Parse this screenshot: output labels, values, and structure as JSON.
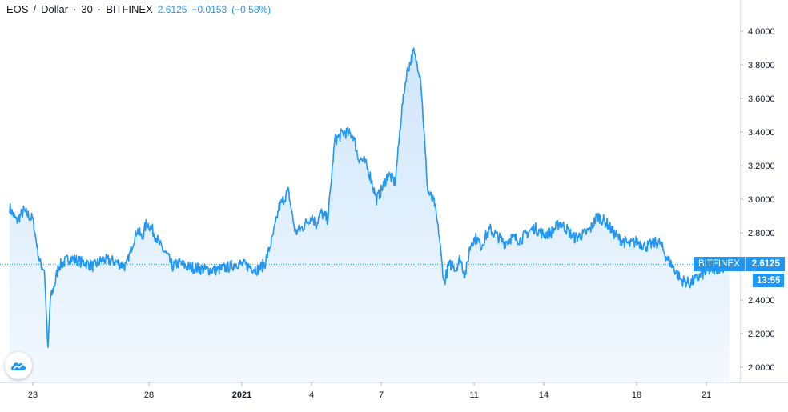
{
  "legend": {
    "symbol": "EOS",
    "separator": "/",
    "currency": "Dollar",
    "interval": "30",
    "exchange": "BITFINEX",
    "last": "2.6125",
    "change": "−0.0153",
    "change_pct": "(−0.58%)"
  },
  "badges": {
    "exchange": "BITFINEX",
    "price": "2.6125",
    "countdown": "13:55"
  },
  "colors": {
    "line": "#2196f3",
    "fill_top": "#cfe6fb",
    "fill_bottom": "#f3f9fe",
    "text": "#131722",
    "axis": "#e0e3eb"
  },
  "logo_icon": "tradingview-cloud-icon",
  "chart_data": {
    "type": "area",
    "title": "EOS / Dollar · 30 · BITFINEX",
    "ylim": [
      1.9,
      4.15
    ],
    "yticks": [
      "4.0000",
      "3.8000",
      "3.6000",
      "3.4000",
      "3.2000",
      "3.0000",
      "2.8000",
      "2.6000",
      "2.4000",
      "2.2000",
      "2.0000"
    ],
    "xlim": [
      0,
      31.1
    ],
    "xticks": [
      {
        "label": "23",
        "t": 1.0,
        "bold": false
      },
      {
        "label": "28",
        "t": 6.0,
        "bold": false
      },
      {
        "label": "2021",
        "t": 10.0,
        "bold": true
      },
      {
        "label": "4",
        "t": 13.0,
        "bold": false
      },
      {
        "label": "7",
        "t": 16.0,
        "bold": false
      },
      {
        "label": "11",
        "t": 20.0,
        "bold": false
      },
      {
        "label": "14",
        "t": 23.0,
        "bold": false
      },
      {
        "label": "18",
        "t": 27.0,
        "bold": false
      },
      {
        "label": "21",
        "t": 30.0,
        "bold": false
      }
    ],
    "last_price": 2.6125,
    "series": [
      {
        "x": [
          0.0,
          0.3,
          0.6,
          1.0,
          1.3,
          1.5,
          1.65,
          1.75,
          1.85,
          1.95,
          2.1,
          2.3,
          2.6,
          3.0,
          3.3,
          3.6,
          4.0,
          4.5,
          5.0,
          5.5,
          5.7,
          5.9,
          6.1,
          6.5,
          6.8,
          7.0,
          7.3,
          7.6,
          8.0,
          8.5,
          9.0,
          9.5,
          9.8,
          10.3,
          10.7,
          11.0,
          11.3,
          11.6,
          12.0,
          12.3,
          12.6,
          13.0,
          13.2,
          13.4,
          13.7,
          14.0,
          14.4,
          14.8,
          15.0,
          15.3,
          15.5,
          15.8,
          16.0,
          16.3,
          16.6,
          16.9,
          17.1,
          17.4,
          17.7,
          18.0,
          18.3,
          18.5,
          18.7,
          18.9,
          19.1,
          19.2,
          19.4,
          19.6,
          19.7,
          19.8,
          19.9,
          20.1,
          20.3,
          20.4,
          20.5,
          20.7,
          21.0,
          21.3,
          21.6,
          22.0,
          22.3,
          22.6,
          23.0,
          23.3,
          23.7,
          24.0,
          24.3,
          24.7,
          25.0,
          25.3,
          25.7,
          26.0,
          26.3,
          26.7,
          27.0,
          27.4,
          27.8,
          28.0,
          28.3,
          28.6,
          28.9,
          29.3,
          29.6,
          29.9,
          30.2,
          30.5,
          30.8,
          31.0
        ],
        "y": [
          2.95,
          2.87,
          2.93,
          2.88,
          2.62,
          2.58,
          2.1,
          2.4,
          2.45,
          2.5,
          2.6,
          2.62,
          2.65,
          2.63,
          2.62,
          2.6,
          2.64,
          2.63,
          2.6,
          2.82,
          2.77,
          2.86,
          2.83,
          2.72,
          2.66,
          2.6,
          2.62,
          2.6,
          2.59,
          2.58,
          2.58,
          2.6,
          2.62,
          2.6,
          2.58,
          2.62,
          2.76,
          2.95,
          3.05,
          2.8,
          2.83,
          2.9,
          2.85,
          2.92,
          2.88,
          3.35,
          3.4,
          3.38,
          3.25,
          3.22,
          3.15,
          3.0,
          3.05,
          3.15,
          3.1,
          3.55,
          3.75,
          3.88,
          3.72,
          3.05,
          2.97,
          2.78,
          2.5,
          2.6,
          2.62,
          2.58,
          2.65,
          2.55,
          2.6,
          2.7,
          2.75,
          2.77,
          2.72,
          2.75,
          2.78,
          2.82,
          2.78,
          2.74,
          2.77,
          2.76,
          2.8,
          2.83,
          2.79,
          2.8,
          2.86,
          2.82,
          2.77,
          2.79,
          2.82,
          2.9,
          2.86,
          2.8,
          2.76,
          2.73,
          2.75,
          2.72,
          2.74,
          2.74,
          2.65,
          2.59,
          2.52,
          2.5,
          2.53,
          2.56,
          2.58,
          2.59,
          2.6,
          2.6
        ]
      }
    ]
  }
}
